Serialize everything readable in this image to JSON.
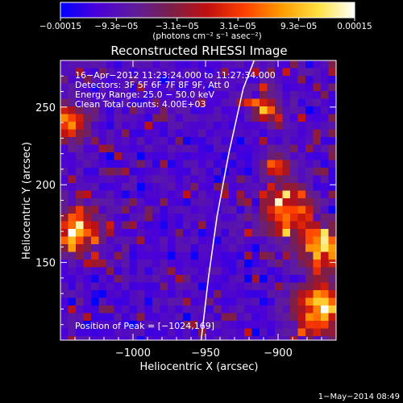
{
  "chart_data": {
    "type": "heatmap",
    "title": "Reconstructed RHESSI Image",
    "xlabel": "Heliocentric X (arcsec)",
    "ylabel": "Heliocentric Y (arcsec)",
    "xlim": [
      -1050,
      -860
    ],
    "ylim": [
      100,
      280
    ],
    "x_ticks": [
      -1000,
      -950,
      -900
    ],
    "x_tick_labels": [
      "−1000",
      "−950",
      "−900"
    ],
    "y_ticks": [
      150,
      200,
      250
    ],
    "y_tick_labels": [
      "150",
      "200",
      "250"
    ],
    "colorbar": {
      "range": [
        -0.00015,
        0.00015
      ],
      "ticks": [
        -0.00015,
        -9.3e-05,
        -3.1e-05,
        3.1e-05,
        9.3e-05,
        0.00015
      ],
      "tick_labels": [
        "−0.00015",
        "−9.3e−05",
        "−3.1e−05",
        "3.1e−05",
        "9.3e−05",
        "0.00015"
      ],
      "unit_label": "(photons cm⁻² s⁻¹ asec⁻²)",
      "colormap": [
        "#0000ff",
        "#4b00d8",
        "#5e1c9c",
        "#7a1f4a",
        "#c01010",
        "#ff4000",
        "#ff9a00",
        "#ffe040",
        "#ffffff"
      ]
    },
    "limb": [
      [
        -953,
        100
      ],
      [
        -948,
        140
      ],
      [
        -942,
        180
      ],
      [
        -934,
        220
      ],
      [
        -924,
        262
      ],
      [
        -914,
        286
      ]
    ],
    "info_lines": [
      "16−Apr−2012 11:23:24.000 to 11:27:34.000",
      "Detectors: 3F 5F 6F 7F 8F 9F, Att 0",
      "Energy Range: 25.0 − 50.0 keV",
      "Clean     Total counts: 4.00E+03"
    ],
    "peak_label": "Position of Peak = [−1024,169]",
    "bright_regions": [
      {
        "x": -1040,
        "y": 170,
        "radius": 14,
        "intensity": 1.0
      },
      {
        "x": -1045,
        "y": 240,
        "radius": 12,
        "intensity": 0.75
      },
      {
        "x": -893,
        "y": 182,
        "radius": 16,
        "intensity": 0.85
      },
      {
        "x": -870,
        "y": 160,
        "radius": 14,
        "intensity": 0.9
      },
      {
        "x": -872,
        "y": 120,
        "radius": 16,
        "intensity": 1.0
      },
      {
        "x": -908,
        "y": 250,
        "radius": 10,
        "intensity": 0.55
      },
      {
        "x": -900,
        "y": 212,
        "radius": 9,
        "intensity": 0.5
      }
    ]
  },
  "footer": {
    "date": "1−May−2014 08:49"
  }
}
